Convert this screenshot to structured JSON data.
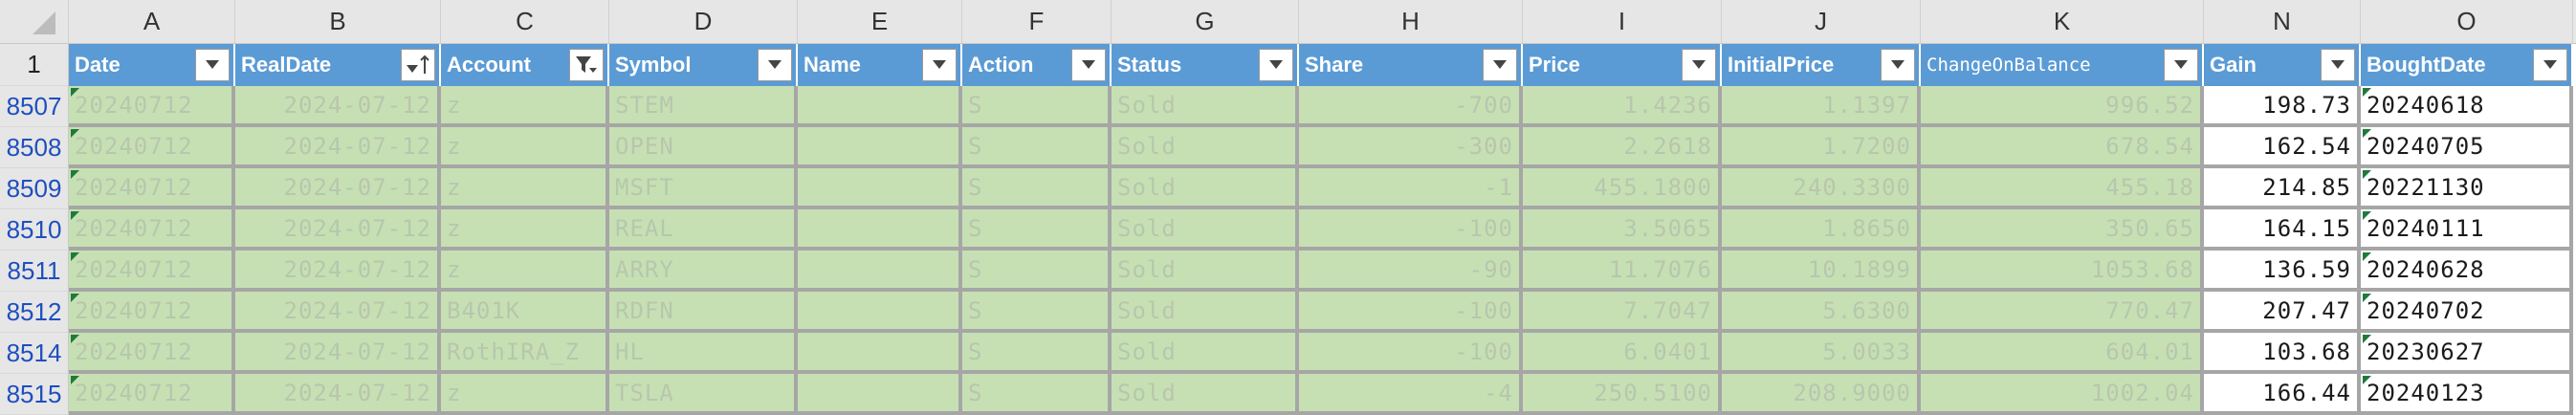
{
  "columns": [
    "A",
    "B",
    "C",
    "D",
    "E",
    "F",
    "G",
    "H",
    "I",
    "J",
    "K",
    "N",
    "O"
  ],
  "header_row_number": "1",
  "headers": [
    "Date",
    "RealDate",
    "Account",
    "Symbol",
    "Name",
    "Action",
    "Status",
    "Share",
    "Price",
    "InitialPrice",
    "ChangeOnBalance",
    "Gain",
    "BoughtDate"
  ],
  "rows": [
    {
      "num": "8507",
      "cells": [
        "20240712",
        "2024-07-12",
        "z",
        "STEM",
        "",
        "S",
        "Sold",
        "-700",
        "1.4236",
        "1.1397",
        "996.52",
        "198.73",
        "20240618"
      ]
    },
    {
      "num": "8508",
      "cells": [
        "20240712",
        "2024-07-12",
        "z",
        "OPEN",
        "",
        "S",
        "Sold",
        "-300",
        "2.2618",
        "1.7200",
        "678.54",
        "162.54",
        "20240705"
      ]
    },
    {
      "num": "8509",
      "cells": [
        "20240712",
        "2024-07-12",
        "z",
        "MSFT",
        "",
        "S",
        "Sold",
        "-1",
        "455.1800",
        "240.3300",
        "455.18",
        "214.85",
        "20221130"
      ]
    },
    {
      "num": "8510",
      "cells": [
        "20240712",
        "2024-07-12",
        "z",
        "REAL",
        "",
        "S",
        "Sold",
        "-100",
        "3.5065",
        "1.8650",
        "350.65",
        "164.15",
        "20240111"
      ]
    },
    {
      "num": "8511",
      "cells": [
        "20240712",
        "2024-07-12",
        "z",
        "ARRY",
        "",
        "S",
        "Sold",
        "-90",
        "11.7076",
        "10.1899",
        "1053.68",
        "136.59",
        "20240628"
      ]
    },
    {
      "num": "8512",
      "cells": [
        "20240712",
        "2024-07-12",
        "B401K",
        "RDFN",
        "",
        "S",
        "Sold",
        "-100",
        "7.7047",
        "5.6300",
        "770.47",
        "207.47",
        "20240702"
      ]
    },
    {
      "num": "8514",
      "cells": [
        "20240712",
        "2024-07-12",
        "RothIRA_Z",
        "HL",
        "",
        "S",
        "Sold",
        "-100",
        "6.0401",
        "5.0033",
        "604.01",
        "103.68",
        "20230627"
      ]
    },
    {
      "num": "8515",
      "cells": [
        "20240712",
        "2024-07-12",
        "z",
        "TSLA",
        "",
        "S",
        "Sold",
        "-4",
        "250.5100",
        "208.9000",
        "1002.04",
        "166.44",
        "20240123"
      ]
    }
  ],
  "colors": {
    "header_fill": "#5b9bd5",
    "row_fill": "#c6e0b4",
    "row_number_text": "#1f4fbf",
    "error_marker": "#1f7a3a"
  }
}
